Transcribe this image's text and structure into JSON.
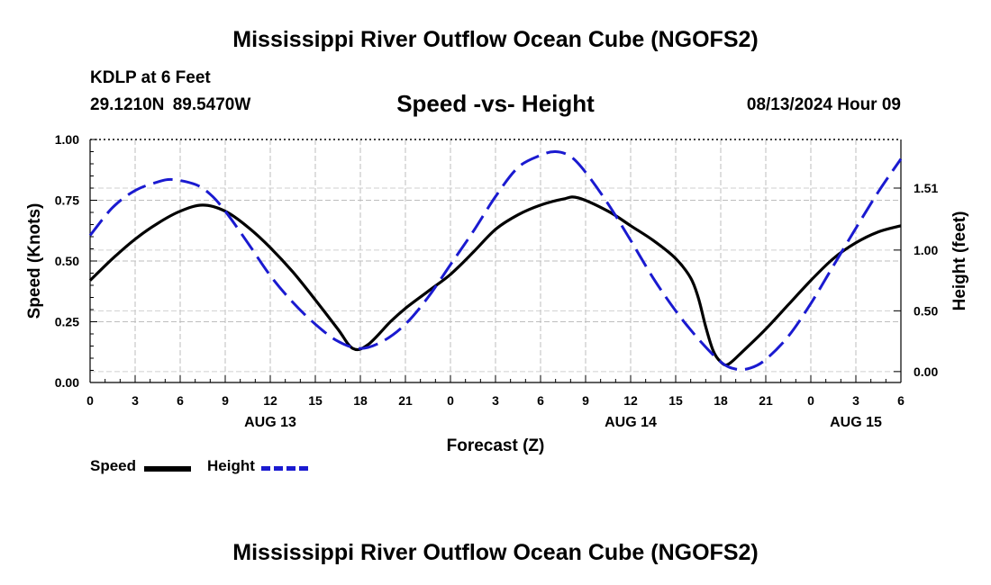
{
  "header": {
    "title_top": "Mississippi River Outflow Ocean Cube (NGOFS2)",
    "title_bottom": "Mississippi River Outflow Ocean Cube (NGOFS2)",
    "station": "KDLP at 6 Feet",
    "lat": "29.1210N",
    "lon": "89.5470W",
    "datetime": "08/13/2024 Hour 09"
  },
  "chart_data": {
    "type": "line",
    "title": "Speed -vs- Height",
    "xlabel": "Forecast (Z)",
    "ylabel": "Speed (Knots)",
    "y2label": "Height (feet)",
    "x_range": [
      0,
      54
    ],
    "x_ticks": [
      0,
      3,
      6,
      9,
      12,
      15,
      18,
      21,
      24,
      27,
      30,
      33,
      36,
      39,
      42,
      45,
      48,
      51,
      54
    ],
    "x_tick_labels": [
      "0",
      "3",
      "6",
      "9",
      "12",
      "15",
      "18",
      "21",
      "0",
      "3",
      "6",
      "9",
      "12",
      "15",
      "18",
      "21",
      "0",
      "3",
      "6"
    ],
    "date_labels": [
      {
        "x": 12,
        "label": "AUG 13"
      },
      {
        "x": 36,
        "label": "AUG 14"
      },
      {
        "x": 51,
        "label": "AUG 15"
      }
    ],
    "ylim": [
      0,
      1
    ],
    "y_ticks": [
      0,
      0.25,
      0.5,
      0.75,
      1.0
    ],
    "y_tick_labels": [
      "0.00",
      "0.25",
      "0.50",
      "0.75",
      "1.00"
    ],
    "y2lim": [
      -0.09,
      1.91
    ],
    "y2_ticks": [
      0,
      0.5,
      1.0,
      1.51
    ],
    "y2_tick_labels": [
      "0.00",
      "0.50",
      "1.00",
      "1.51"
    ],
    "grid": true,
    "series": [
      {
        "name": "Speed",
        "axis": "left",
        "color": "#000000",
        "dash": "solid",
        "points": [
          [
            0,
            0.42
          ],
          [
            1.5,
            0.51
          ],
          [
            3,
            0.59
          ],
          [
            4.5,
            0.655
          ],
          [
            6,
            0.705
          ],
          [
            7.5,
            0.73
          ],
          [
            9,
            0.705
          ],
          [
            10.5,
            0.64
          ],
          [
            12,
            0.555
          ],
          [
            13.5,
            0.455
          ],
          [
            15,
            0.34
          ],
          [
            16.5,
            0.22
          ],
          [
            17.5,
            0.14
          ],
          [
            18.5,
            0.155
          ],
          [
            20,
            0.25
          ],
          [
            21,
            0.305
          ],
          [
            22.5,
            0.375
          ],
          [
            24,
            0.445
          ],
          [
            25.5,
            0.535
          ],
          [
            27,
            0.63
          ],
          [
            28.5,
            0.69
          ],
          [
            30,
            0.73
          ],
          [
            31.5,
            0.755
          ],
          [
            32.5,
            0.76
          ],
          [
            34.5,
            0.705
          ],
          [
            36,
            0.645
          ],
          [
            37.5,
            0.585
          ],
          [
            39,
            0.51
          ],
          [
            40,
            0.43
          ],
          [
            40.5,
            0.35
          ],
          [
            41,
            0.23
          ],
          [
            41.5,
            0.13
          ],
          [
            42,
            0.085
          ],
          [
            42.5,
            0.075
          ],
          [
            43.5,
            0.13
          ],
          [
            45,
            0.22
          ],
          [
            46.5,
            0.32
          ],
          [
            48,
            0.42
          ],
          [
            49.5,
            0.51
          ],
          [
            51,
            0.575
          ],
          [
            52.5,
            0.62
          ],
          [
            54,
            0.645
          ]
        ]
      },
      {
        "name": "Height",
        "axis": "right",
        "color": "#1a1ad0",
        "dash": "dashed",
        "points": [
          [
            0,
            1.12
          ],
          [
            1.5,
            1.35
          ],
          [
            3,
            1.49
          ],
          [
            4.5,
            1.56
          ],
          [
            5.5,
            1.58
          ],
          [
            7,
            1.54
          ],
          [
            8,
            1.46
          ],
          [
            9,
            1.32
          ],
          [
            10.5,
            1.06
          ],
          [
            12,
            0.79
          ],
          [
            13.5,
            0.57
          ],
          [
            15,
            0.39
          ],
          [
            16.5,
            0.25
          ],
          [
            18,
            0.19
          ],
          [
            19.5,
            0.25
          ],
          [
            21,
            0.39
          ],
          [
            22.5,
            0.61
          ],
          [
            24,
            0.88
          ],
          [
            25.5,
            1.15
          ],
          [
            27,
            1.44
          ],
          [
            28.5,
            1.68
          ],
          [
            30,
            1.78
          ],
          [
            31,
            1.81
          ],
          [
            32,
            1.77
          ],
          [
            33,
            1.64
          ],
          [
            34.5,
            1.38
          ],
          [
            36,
            1.08
          ],
          [
            37.5,
            0.77
          ],
          [
            39,
            0.5
          ],
          [
            40.5,
            0.27
          ],
          [
            42,
            0.08
          ],
          [
            43,
            0.02
          ],
          [
            44,
            0.03
          ],
          [
            45,
            0.1
          ],
          [
            46.5,
            0.29
          ],
          [
            48,
            0.56
          ],
          [
            49.5,
            0.87
          ],
          [
            51,
            1.18
          ],
          [
            52.5,
            1.48
          ],
          [
            54,
            1.75
          ]
        ]
      }
    ]
  },
  "legend": [
    {
      "label": "Speed",
      "color": "#000000",
      "dash": "solid"
    },
    {
      "label": "Height",
      "color": "#1a1ad0",
      "dash": "dashed"
    }
  ]
}
